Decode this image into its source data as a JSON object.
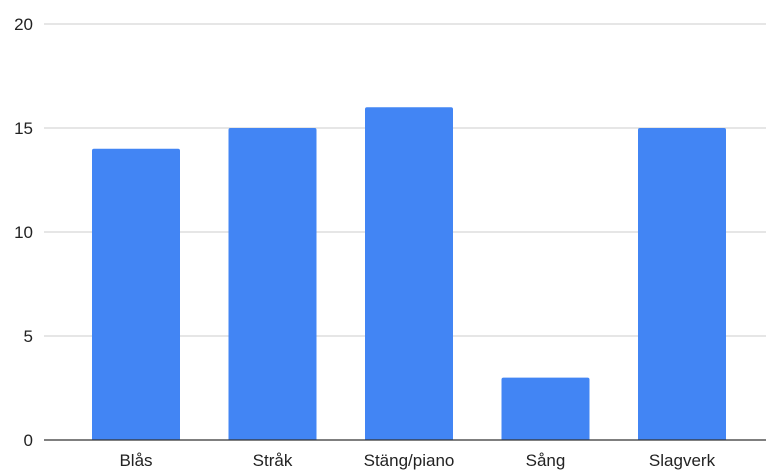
{
  "chart_data": {
    "type": "bar",
    "title": "",
    "xlabel": "",
    "ylabel": "",
    "categories": [
      "Blås",
      "Stråk",
      "Stäng/piano",
      "Sång",
      "Slagverk"
    ],
    "values": [
      14,
      15,
      16,
      3,
      15
    ],
    "ylim": [
      0,
      20
    ],
    "yticks": [
      0,
      5,
      10,
      15,
      20
    ],
    "grid": true,
    "legend": "none",
    "colors": {
      "bar": "#4285f4",
      "grid": "#cccccc",
      "axis": "#333333",
      "text": "#222222"
    }
  }
}
